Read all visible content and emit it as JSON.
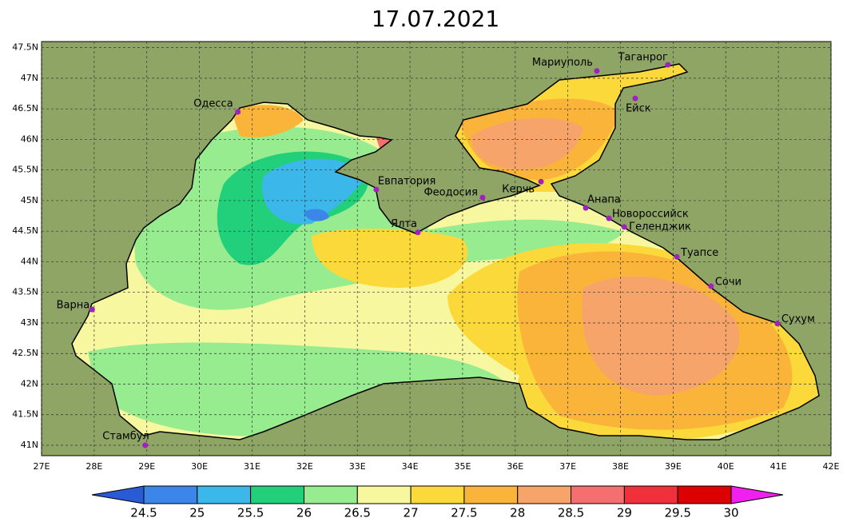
{
  "title": "17.07.2021",
  "map": {
    "xlim": [
      27,
      42
    ],
    "ylim": [
      40.83,
      47.6
    ],
    "xticks": [
      {
        "value": 27,
        "label": "27E"
      },
      {
        "value": 28,
        "label": "28E"
      },
      {
        "value": 29,
        "label": "29E"
      },
      {
        "value": 30,
        "label": "30E"
      },
      {
        "value": 31,
        "label": "31E"
      },
      {
        "value": 32,
        "label": "32E"
      },
      {
        "value": 33,
        "label": "33E"
      },
      {
        "value": 34,
        "label": "34E"
      },
      {
        "value": 35,
        "label": "35E"
      },
      {
        "value": 36,
        "label": "36E"
      },
      {
        "value": 37,
        "label": "37E"
      },
      {
        "value": 38,
        "label": "38E"
      },
      {
        "value": 39,
        "label": "39E"
      },
      {
        "value": 40,
        "label": "40E"
      },
      {
        "value": 41,
        "label": "41E"
      },
      {
        "value": 42,
        "label": "42E"
      }
    ],
    "yticks": [
      {
        "value": 41,
        "label": "41N"
      },
      {
        "value": 41.5,
        "label": "41.5N"
      },
      {
        "value": 42,
        "label": "42N"
      },
      {
        "value": 42.5,
        "label": "42.5N"
      },
      {
        "value": 43,
        "label": "43N"
      },
      {
        "value": 43.5,
        "label": "43.5N"
      },
      {
        "value": 44,
        "label": "44N"
      },
      {
        "value": 44.5,
        "label": "44.5N"
      },
      {
        "value": 45,
        "label": "45N"
      },
      {
        "value": 45.5,
        "label": "45.5N"
      },
      {
        "value": 46,
        "label": "46N"
      },
      {
        "value": 46.5,
        "label": "46.5N"
      },
      {
        "value": 47,
        "label": "47N"
      },
      {
        "value": 47.5,
        "label": "47.5N"
      }
    ],
    "cities": [
      {
        "name": "Одесса",
        "lon": 30.73,
        "lat": 46.45
      },
      {
        "name": "Мариуполь",
        "lon": 37.55,
        "lat": 47.12
      },
      {
        "name": "Таганрог",
        "lon": 38.9,
        "lat": 47.22
      },
      {
        "name": "Ейск",
        "lon": 38.28,
        "lat": 46.67
      },
      {
        "name": "Евпатория",
        "lon": 33.36,
        "lat": 45.18
      },
      {
        "name": "Феодосия",
        "lon": 35.38,
        "lat": 45.05
      },
      {
        "name": "Керчь",
        "lon": 36.49,
        "lat": 45.31
      },
      {
        "name": "Анапа",
        "lon": 37.34,
        "lat": 44.88
      },
      {
        "name": "Новороссийск",
        "lon": 37.78,
        "lat": 44.71
      },
      {
        "name": "Геленджик",
        "lon": 38.07,
        "lat": 44.57
      },
      {
        "name": "Ялта",
        "lon": 34.15,
        "lat": 44.48
      },
      {
        "name": "Туапсе",
        "lon": 39.07,
        "lat": 44.08
      },
      {
        "name": "Сочи",
        "lon": 39.72,
        "lat": 43.6
      },
      {
        "name": "Сухум",
        "lon": 40.98,
        "lat": 42.99
      },
      {
        "name": "Варна",
        "lon": 27.96,
        "lat": 43.22
      },
      {
        "name": "Стамбул",
        "lon": 28.97,
        "lat": 41.0
      }
    ]
  },
  "colorbar": {
    "levels": [
      24.5,
      25,
      25.5,
      26,
      26.5,
      27,
      27.5,
      28,
      28.5,
      29,
      29.5,
      30
    ],
    "colors": [
      "#2a5bd7",
      "#3b86e8",
      "#3cb7ea",
      "#22d07c",
      "#96ec8e",
      "#f7f7a0",
      "#fbd93a",
      "#fbb43a",
      "#f6a46a",
      "#f47070",
      "#f0303a",
      "#dc0000",
      "#f020f0"
    ]
  }
}
